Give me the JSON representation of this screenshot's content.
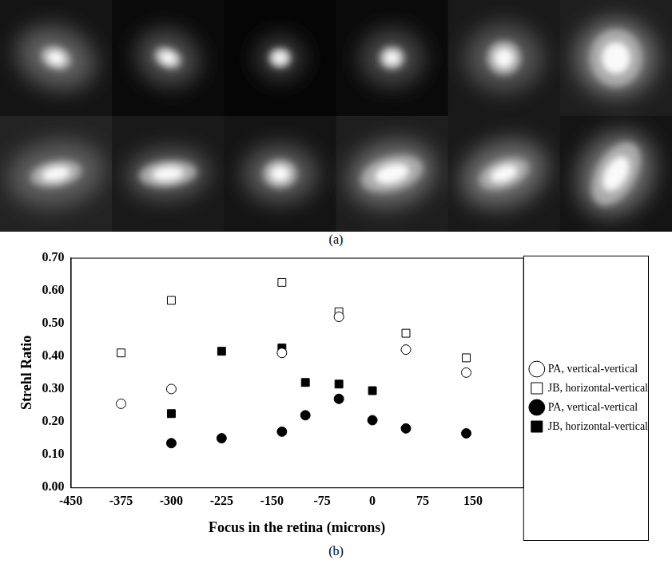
{
  "panel_labels": [
    "(a)",
    "(b)"
  ],
  "chart_data": {
    "type": "scatter",
    "x_label": "Focus in the retina (microns)",
    "y_label": "Strehl Ratio",
    "xlim": [
      -450,
      225
    ],
    "xticks": [
      -450,
      -375,
      -300,
      -225,
      -150,
      -75,
      0,
      75,
      150
    ],
    "ylim": [
      0,
      0.7
    ],
    "yticks": [
      {
        "value": 0,
        "label": "0.00"
      },
      {
        "value": 0.1,
        "label": "0.10"
      },
      {
        "value": 0.2,
        "label": "0.20"
      },
      {
        "value": 0.3,
        "label": "0.30"
      },
      {
        "value": 0.4,
        "label": "0.40"
      },
      {
        "value": 0.5,
        "label": "0.50"
      },
      {
        "value": 0.6,
        "label": "0.60"
      },
      {
        "value": 0.7,
        "label": "0.70"
      }
    ],
    "grid": false,
    "legend": "right",
    "series": [
      {
        "name": "PA, vertical-vertical",
        "color": "#000000",
        "marker": "open-circle",
        "x": [
          -375,
          -300,
          -135,
          -50,
          50,
          140
        ],
        "values": [
          0.255,
          0.3,
          0.41,
          0.52,
          0.42,
          0.35
        ]
      },
      {
        "name": "JB, horizontal-vertical",
        "color": "#000000",
        "marker": "open-square",
        "x": [
          -375,
          -300,
          -135,
          -50,
          50,
          140
        ],
        "values": [
          0.41,
          0.57,
          0.625,
          0.535,
          0.47,
          0.395
        ]
      },
      {
        "name": "PA, vertical-vertical",
        "color": "#000000",
        "marker": "filled-circle",
        "x": [
          -300,
          -225,
          -135,
          -100,
          -50,
          0,
          50,
          140
        ],
        "values": [
          0.135,
          0.15,
          0.17,
          0.22,
          0.27,
          0.205,
          0.18,
          0.165
        ]
      },
      {
        "name": "JB, horizontal-vertical",
        "color": "#000000",
        "marker": "filled-square",
        "x": [
          -300,
          -225,
          -135,
          -100,
          -50,
          0
        ],
        "values": [
          0.225,
          0.415,
          0.425,
          0.32,
          0.315,
          0.295
        ]
      }
    ]
  }
}
